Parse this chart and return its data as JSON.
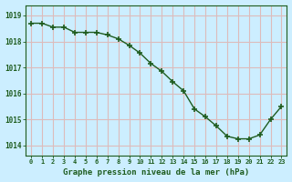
{
  "x": [
    0,
    1,
    2,
    3,
    4,
    5,
    6,
    7,
    8,
    9,
    10,
    11,
    12,
    13,
    14,
    15,
    16,
    17,
    18,
    19,
    20,
    21,
    22,
    23
  ],
  "y": [
    1018.7,
    1018.7,
    1018.55,
    1018.55,
    1018.35,
    1018.35,
    1018.35,
    1018.25,
    1018.1,
    1017.85,
    1017.55,
    1017.15,
    1016.85,
    1016.45,
    1016.1,
    1015.4,
    1015.1,
    1014.75,
    1014.35,
    1014.25,
    1014.25,
    1014.4,
    1015.0,
    1015.5
  ],
  "line_color": "#1e5c1e",
  "marker_color": "#1e5c1e",
  "bg_color": "#cceeff",
  "grid_color": "#ddbbbb",
  "xlabel": "Graphe pression niveau de la mer (hPa)",
  "xlabel_color": "#1e5c1e",
  "ylabel_ticks": [
    1014,
    1015,
    1016,
    1017,
    1018,
    1019
  ],
  "xlim": [
    -0.5,
    23.5
  ],
  "ylim": [
    1013.6,
    1019.4
  ],
  "tick_color": "#1e5c1e",
  "axis_color": "#1e5c1e",
  "xtick_labels": [
    "0",
    "1",
    "2",
    "3",
    "4",
    "5",
    "6",
    "7",
    "8",
    "9",
    "10",
    "11",
    "12",
    "13",
    "14",
    "15",
    "16",
    "17",
    "18",
    "19",
    "20",
    "21",
    "22",
    "23"
  ]
}
